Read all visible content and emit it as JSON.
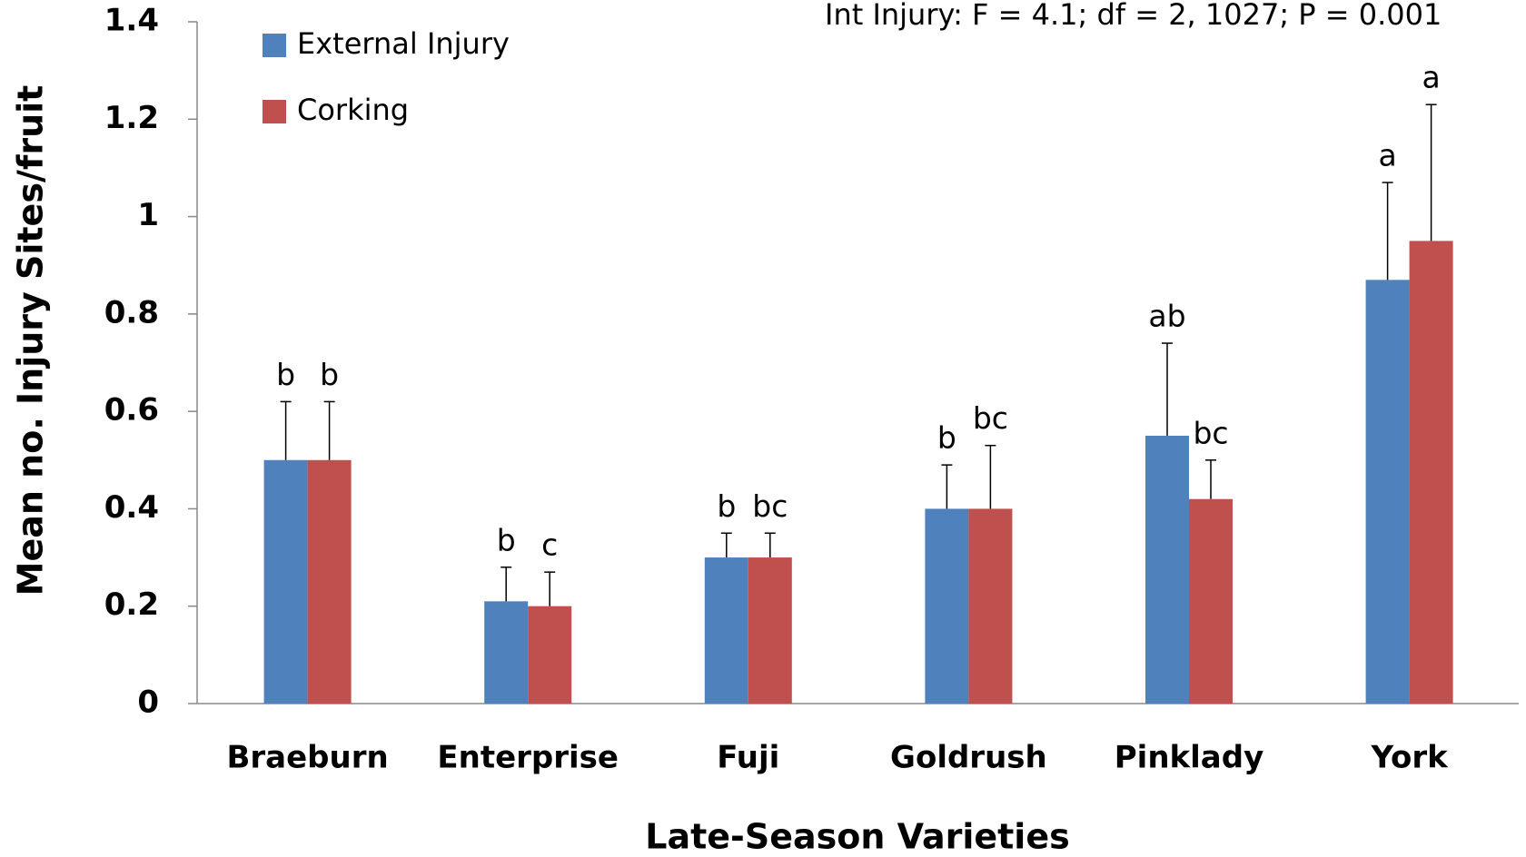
{
  "chart_data": {
    "type": "bar",
    "annotation": "Int Injury: F = 4.1; df = 2, 1027; P = 0.001",
    "x_label": "Late-Season Varieties",
    "y_label": "Mean no. Injury Sites/fruit",
    "categories": [
      "Braeburn",
      "Enterprise",
      "Fuji",
      "Goldrush",
      "Pinklady",
      "York"
    ],
    "series": [
      {
        "name": "External Injury",
        "color": "#4f81bd",
        "values": [
          0.5,
          0.21,
          0.3,
          0.4,
          0.55,
          0.87
        ],
        "errors": [
          0.12,
          0.07,
          0.05,
          0.09,
          0.19,
          0.2
        ],
        "labels": [
          "b",
          "b",
          "b",
          "b",
          "ab",
          "a"
        ]
      },
      {
        "name": "Corking",
        "color": "#c0504d",
        "values": [
          0.5,
          0.2,
          0.3,
          0.4,
          0.42,
          0.95
        ],
        "errors": [
          0.12,
          0.07,
          0.05,
          0.13,
          0.08,
          0.28
        ],
        "labels": [
          "b",
          "c",
          "bc",
          "bc",
          "bc",
          "a"
        ]
      }
    ],
    "ylim": [
      0,
      1.4
    ],
    "yticks": [
      0,
      0.2,
      0.4,
      0.6,
      0.8,
      1,
      1.2,
      1.4
    ]
  }
}
